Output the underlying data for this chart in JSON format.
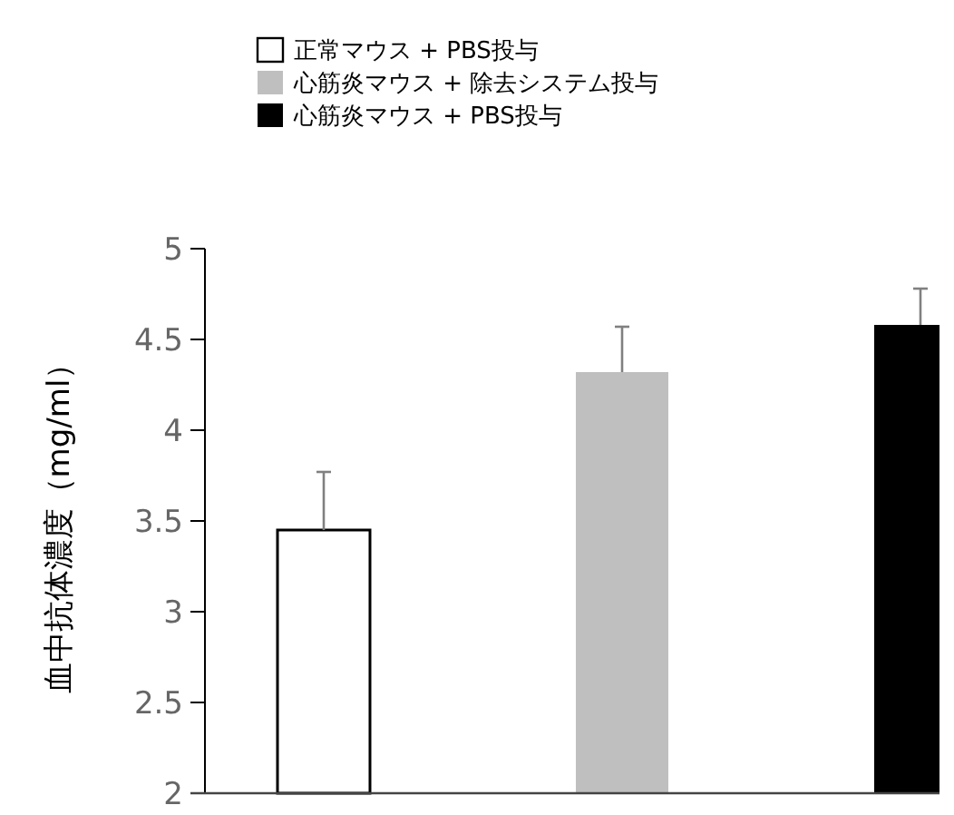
{
  "chart_data": {
    "type": "bar",
    "ylabel": "血中抗体濃度（mg/ml）",
    "categories": [
      null,
      null,
      null
    ],
    "series": [
      {
        "name": "正常マウス + PBS投与",
        "color": "#ffffff",
        "values": [
          3.45,
          null,
          null
        ],
        "errors": [
          [
            3.45,
            3.77
          ],
          null,
          null
        ]
      },
      {
        "name": "心筋炎マウス + 除去システム投与",
        "color": "#bfbfbf",
        "values": [
          null,
          4.32,
          null
        ],
        "errors": [
          null,
          [
            4.32,
            4.57
          ],
          null
        ]
      },
      {
        "name": "心筋炎マウス + PBS投与",
        "color": "#000000",
        "values": [
          null,
          null,
          4.58
        ],
        "errors": [
          null,
          null,
          [
            4.58,
            4.78
          ]
        ]
      }
    ],
    "ylim": [
      2,
      5
    ],
    "yticks": [
      2,
      2.5,
      3,
      3.5,
      4,
      4.5,
      5
    ],
    "grid": false,
    "legend": "top"
  }
}
